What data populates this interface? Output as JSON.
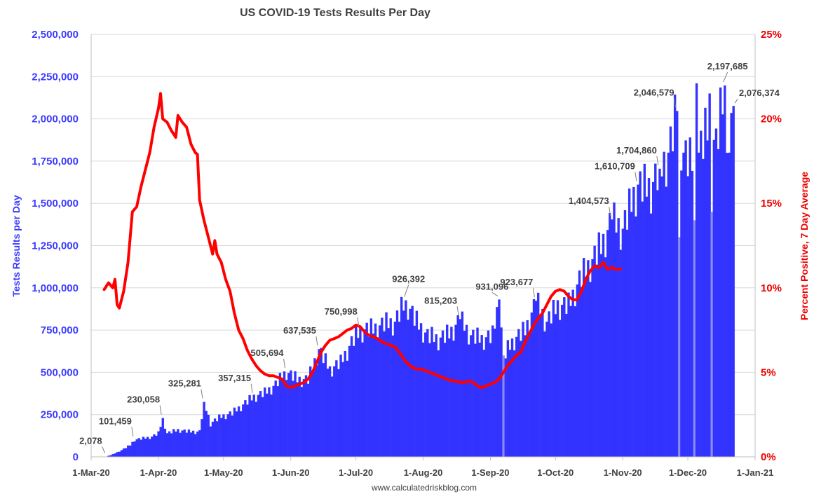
{
  "chart_data": {
    "type": "bar",
    "title": "US COVID-19 Tests Results Per Day",
    "ylabel_left": "Tests Results per Day",
    "ylabel_right": "Percent Positive, 7 Day Average",
    "footer": "www.calculatedriskblog.com",
    "bar_color": "#3333ff",
    "line_color": "#ff0000",
    "ylim_left": [
      0,
      2500000
    ],
    "ylim_right": [
      0,
      25
    ],
    "xlim_days": [
      0,
      306
    ],
    "grid": "horizontal",
    "yticks_left": [
      {
        "value": 0,
        "label": "0"
      },
      {
        "value": 250000,
        "label": "250,000"
      },
      {
        "value": 500000,
        "label": "500,000"
      },
      {
        "value": 750000,
        "label": "750,000"
      },
      {
        "value": 1000000,
        "label": "1,000,000"
      },
      {
        "value": 1250000,
        "label": "1,250,000"
      },
      {
        "value": 1500000,
        "label": "1,500,000"
      },
      {
        "value": 1750000,
        "label": "1,750,000"
      },
      {
        "value": 2000000,
        "label": "2,000,000"
      },
      {
        "value": 2250000,
        "label": "2,250,000"
      },
      {
        "value": 2500000,
        "label": "2,500,000"
      }
    ],
    "yticks_right": [
      {
        "value": 0,
        "label": "0%"
      },
      {
        "value": 5,
        "label": "5%"
      },
      {
        "value": 10,
        "label": "10%"
      },
      {
        "value": 15,
        "label": "15%"
      },
      {
        "value": 20,
        "label": "20%"
      },
      {
        "value": 25,
        "label": "25%"
      }
    ],
    "xticks": [
      {
        "day": 0,
        "label": "1-Mar-20"
      },
      {
        "day": 31,
        "label": "1-Apr-20"
      },
      {
        "day": 61,
        "label": "1-May-20"
      },
      {
        "day": 92,
        "label": "1-Jun-20"
      },
      {
        "day": 122,
        "label": "1-Jul-20"
      },
      {
        "day": 153,
        "label": "1-Aug-20"
      },
      {
        "day": 184,
        "label": "1-Sep-20"
      },
      {
        "day": 214,
        "label": "1-Oct-20"
      },
      {
        "day": 245,
        "label": "1-Nov-20"
      },
      {
        "day": 275,
        "label": "1-Dec-20"
      },
      {
        "day": 306,
        "label": "1-Jan-21"
      }
    ],
    "tests_keypoints": [
      [
        7,
        2078
      ],
      [
        10,
        15000
      ],
      [
        14,
        40000
      ],
      [
        18,
        70000
      ],
      [
        20,
        101459
      ],
      [
        24,
        110000
      ],
      [
        28,
        120000
      ],
      [
        31,
        140000
      ],
      [
        33,
        230058
      ],
      [
        35,
        140000
      ],
      [
        40,
        160000
      ],
      [
        45,
        150000
      ],
      [
        50,
        150000
      ],
      [
        52,
        325281
      ],
      [
        55,
        200000
      ],
      [
        60,
        240000
      ],
      [
        65,
        260000
      ],
      [
        70,
        310000
      ],
      [
        75,
        357315
      ],
      [
        80,
        380000
      ],
      [
        85,
        430000
      ],
      [
        90,
        505694
      ],
      [
        95,
        460000
      ],
      [
        100,
        460000
      ],
      [
        105,
        637535
      ],
      [
        110,
        520000
      ],
      [
        115,
        560000
      ],
      [
        120,
        680000
      ],
      [
        124,
        750998
      ],
      [
        130,
        760000
      ],
      [
        135,
        790000
      ],
      [
        140,
        800000
      ],
      [
        145,
        926392
      ],
      [
        150,
        800000
      ],
      [
        155,
        720000
      ],
      [
        160,
        700000
      ],
      [
        165,
        730000
      ],
      [
        170,
        815203
      ],
      [
        175,
        720000
      ],
      [
        180,
        700000
      ],
      [
        185,
        720000
      ],
      [
        188,
        931096
      ],
      [
        190,
        600000
      ],
      [
        195,
        700000
      ],
      [
        200,
        750000
      ],
      [
        205,
        923677
      ],
      [
        210,
        800000
      ],
      [
        215,
        900000
      ],
      [
        220,
        900000
      ],
      [
        225,
        1050000
      ],
      [
        230,
        1150000
      ],
      [
        235,
        1250000
      ],
      [
        240,
        1404573
      ],
      [
        245,
        1350000
      ],
      [
        250,
        1550000
      ],
      [
        252,
        1610709
      ],
      [
        258,
        1600000
      ],
      [
        262,
        1704860
      ],
      [
        266,
        1800000
      ],
      [
        270,
        2046579
      ],
      [
        273,
        1800000
      ],
      [
        276,
        1750000
      ],
      [
        280,
        1800000
      ],
      [
        284,
        1950000
      ],
      [
        288,
        1850000
      ],
      [
        292,
        2197685
      ],
      [
        294,
        1800000
      ],
      [
        296,
        2076374
      ]
    ],
    "tests_spikes": [
      {
        "day": 33,
        "value": 230058
      },
      {
        "day": 52,
        "value": 325281
      },
      {
        "day": 105,
        "value": 637535
      },
      {
        "day": 145,
        "value": 926392
      },
      {
        "day": 170,
        "value": 815203
      },
      {
        "day": 188,
        "value": 931096
      },
      {
        "day": 205,
        "value": 923677
      },
      {
        "day": 240,
        "value": 1404573
      },
      {
        "day": 252,
        "value": 1610709
      },
      {
        "day": 262,
        "value": 1704860
      },
      {
        "day": 270,
        "value": 2046579
      },
      {
        "day": 279,
        "value": 2210000
      },
      {
        "day": 285,
        "value": 2150000
      },
      {
        "day": 292,
        "value": 2197685
      },
      {
        "day": 296,
        "value": 2076374
      }
    ],
    "tests_dips": [
      {
        "day": 190,
        "value": 600000
      },
      {
        "day": 271,
        "value": 1300000
      },
      {
        "day": 278,
        "value": 1400000
      },
      {
        "day": 286,
        "value": 1450000
      }
    ],
    "positivity": [
      [
        6,
        9.9
      ],
      [
        8,
        10.3
      ],
      [
        10,
        10.0
      ],
      [
        11,
        10.5
      ],
      [
        12,
        9.0
      ],
      [
        13,
        8.8
      ],
      [
        15,
        9.8
      ],
      [
        17,
        11.5
      ],
      [
        19,
        14.5
      ],
      [
        21,
        14.8
      ],
      [
        23,
        16.0
      ],
      [
        25,
        17.0
      ],
      [
        27,
        18.0
      ],
      [
        29,
        19.5
      ],
      [
        31,
        20.6
      ],
      [
        32,
        21.5
      ],
      [
        33,
        20.0
      ],
      [
        35,
        19.8
      ],
      [
        37,
        19.3
      ],
      [
        39,
        18.9
      ],
      [
        40,
        20.2
      ],
      [
        42,
        19.8
      ],
      [
        44,
        19.5
      ],
      [
        46,
        18.5
      ],
      [
        48,
        18.0
      ],
      [
        49,
        17.9
      ],
      [
        50,
        15.2
      ],
      [
        52,
        14.0
      ],
      [
        54,
        13.0
      ],
      [
        56,
        12.0
      ],
      [
        57,
        12.8
      ],
      [
        58,
        12.0
      ],
      [
        60,
        11.5
      ],
      [
        62,
        10.5
      ],
      [
        64,
        9.8
      ],
      [
        66,
        8.5
      ],
      [
        68,
        7.5
      ],
      [
        70,
        7.0
      ],
      [
        72,
        6.3
      ],
      [
        74,
        5.8
      ],
      [
        76,
        5.4
      ],
      [
        78,
        5.1
      ],
      [
        80,
        4.9
      ],
      [
        82,
        4.8
      ],
      [
        84,
        4.8
      ],
      [
        86,
        4.7
      ],
      [
        88,
        4.6
      ],
      [
        90,
        4.2
      ],
      [
        92,
        4.1
      ],
      [
        94,
        4.2
      ],
      [
        96,
        4.3
      ],
      [
        98,
        4.4
      ],
      [
        100,
        4.6
      ],
      [
        102,
        5.0
      ],
      [
        104,
        5.6
      ],
      [
        106,
        6.2
      ],
      [
        108,
        6.6
      ],
      [
        110,
        6.9
      ],
      [
        112,
        7.0
      ],
      [
        114,
        7.1
      ],
      [
        116,
        7.3
      ],
      [
        118,
        7.5
      ],
      [
        120,
        7.6
      ],
      [
        122,
        7.8
      ],
      [
        124,
        7.7
      ],
      [
        126,
        7.4
      ],
      [
        128,
        7.2
      ],
      [
        130,
        7.1
      ],
      [
        132,
        7.0
      ],
      [
        134,
        6.8
      ],
      [
        136,
        6.7
      ],
      [
        138,
        6.6
      ],
      [
        140,
        6.5
      ],
      [
        142,
        6.2
      ],
      [
        144,
        5.8
      ],
      [
        146,
        5.5
      ],
      [
        148,
        5.3
      ],
      [
        150,
        5.2
      ],
      [
        152,
        5.2
      ],
      [
        154,
        5.1
      ],
      [
        156,
        5.0
      ],
      [
        158,
        4.9
      ],
      [
        160,
        4.8
      ],
      [
        162,
        4.7
      ],
      [
        164,
        4.6
      ],
      [
        166,
        4.5
      ],
      [
        168,
        4.5
      ],
      [
        170,
        4.4
      ],
      [
        172,
        4.4
      ],
      [
        174,
        4.5
      ],
      [
        176,
        4.4
      ],
      [
        178,
        4.2
      ],
      [
        180,
        4.1
      ],
      [
        182,
        4.2
      ],
      [
        184,
        4.3
      ],
      [
        186,
        4.4
      ],
      [
        188,
        4.6
      ],
      [
        190,
        5.0
      ],
      [
        192,
        5.4
      ],
      [
        194,
        5.7
      ],
      [
        196,
        6.0
      ],
      [
        198,
        6.2
      ],
      [
        200,
        6.8
      ],
      [
        202,
        7.3
      ],
      [
        204,
        7.8
      ],
      [
        206,
        8.2
      ],
      [
        208,
        8.5
      ],
      [
        210,
        9.0
      ],
      [
        212,
        9.5
      ],
      [
        214,
        9.8
      ],
      [
        216,
        9.9
      ],
      [
        218,
        9.8
      ],
      [
        220,
        9.5
      ],
      [
        222,
        9.3
      ],
      [
        224,
        9.3
      ],
      [
        226,
        9.8
      ],
      [
        228,
        10.5
      ],
      [
        230,
        11.0
      ],
      [
        232,
        11.3
      ],
      [
        234,
        11.2
      ],
      [
        236,
        11.5
      ],
      [
        238,
        11.1
      ],
      [
        240,
        11.2
      ],
      [
        242,
        11.1
      ],
      [
        244,
        11.1
      ]
    ],
    "annotations": [
      {
        "label": "2,078",
        "day": 7,
        "value": 2078
      },
      {
        "label": "101,459",
        "day": 20,
        "value": 101459
      },
      {
        "label": "230,058",
        "day": 33,
        "value": 230058
      },
      {
        "label": "325,281",
        "day": 52,
        "value": 325281
      },
      {
        "label": "357,315",
        "day": 75,
        "value": 357315
      },
      {
        "label": "505,694",
        "day": 90,
        "value": 505694
      },
      {
        "label": "637,535",
        "day": 105,
        "value": 637535
      },
      {
        "label": "750,998",
        "day": 124,
        "value": 750998
      },
      {
        "label": "926,392",
        "day": 145,
        "value": 926392
      },
      {
        "label": "815,203",
        "day": 170,
        "value": 815203
      },
      {
        "label": "931,096",
        "day": 188,
        "value": 931096
      },
      {
        "label": "923,677",
        "day": 205,
        "value": 923677
      },
      {
        "label": "1,404,573",
        "day": 240,
        "value": 1404573
      },
      {
        "label": "1,610,709",
        "day": 252,
        "value": 1610709
      },
      {
        "label": "1,704,860",
        "day": 262,
        "value": 1704860
      },
      {
        "label": "2,046,579",
        "day": 270,
        "value": 2046579
      },
      {
        "label": "2,197,685",
        "day": 292,
        "value": 2197685
      },
      {
        "label": "2,076,374",
        "day": 296,
        "value": 2076374
      }
    ]
  }
}
